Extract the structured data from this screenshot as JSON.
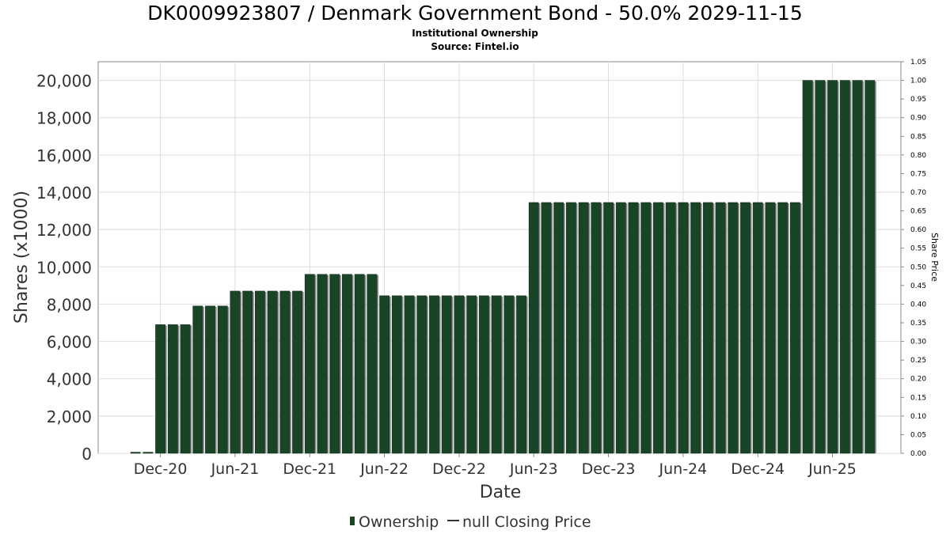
{
  "chart_data": {
    "type": "bar",
    "title": "DK0009923807 / Denmark Government Bond - 50.0% 2029-11-15",
    "subtitle": "Institutional Ownership",
    "source": "Source: Fintel.io",
    "xlabel": "Date",
    "ylabel": "Shares (x1000)",
    "y2label": "Share Price",
    "ylim": [
      0,
      21000
    ],
    "y2lim": [
      0,
      1.05
    ],
    "yticks": [
      0,
      2000,
      4000,
      6000,
      8000,
      10000,
      12000,
      14000,
      16000,
      18000,
      20000
    ],
    "ytick_labels": [
      "0",
      "2,000",
      "4,000",
      "6,000",
      "8,000",
      "10,000",
      "12,000",
      "14,000",
      "16,000",
      "18,000",
      "20,000"
    ],
    "y2ticks": [
      0,
      0.05,
      0.1,
      0.15,
      0.2,
      0.25,
      0.3,
      0.35,
      0.4,
      0.45,
      0.5,
      0.55,
      0.6,
      0.65,
      0.7,
      0.75,
      0.8,
      0.85,
      0.9,
      0.95,
      1.0,
      1.05
    ],
    "y2tick_labels": [
      "0.00",
      "0.05",
      "0.10",
      "0.15",
      "0.20",
      "0.25",
      "0.30",
      "0.35",
      "0.40",
      "0.45",
      "0.50",
      "0.55",
      "0.60",
      "0.65",
      "0.70",
      "0.75",
      "0.80",
      "0.85",
      "0.90",
      "0.95",
      "1.00",
      "1.05"
    ],
    "xtick_labels": [
      "Dec-20",
      "Jun-21",
      "Dec-21",
      "Jun-22",
      "Dec-22",
      "Jun-23",
      "Dec-23",
      "Jun-24",
      "Dec-24",
      "Jun-25"
    ],
    "xtick_slots": [
      5,
      11,
      17,
      23,
      29,
      35,
      41,
      47,
      53,
      59
    ],
    "x_slot_range": [
      0,
      64.5
    ],
    "grid": true,
    "legend_placement": "bottom-center",
    "series": [
      {
        "name": "Ownership",
        "color": "#1a4426",
        "first_slot": 3,
        "values": [
          60,
          60,
          6900,
          6900,
          6900,
          7900,
          7900,
          7900,
          8700,
          8700,
          8700,
          8700,
          8700,
          8700,
          9600,
          9600,
          9600,
          9600,
          9600,
          9600,
          8450,
          8450,
          8450,
          8450,
          8450,
          8450,
          8450,
          8450,
          8450,
          8450,
          8450,
          8450,
          13450,
          13450,
          13450,
          13450,
          13450,
          13450,
          13450,
          13450,
          13450,
          13450,
          13450,
          13450,
          13450,
          13450,
          13450,
          13450,
          13450,
          13450,
          13450,
          13450,
          13450,
          13450,
          20000,
          20000,
          20000,
          20000,
          20000,
          20000
        ]
      },
      {
        "name": "null Closing Price",
        "color": "#333333",
        "values": []
      }
    ]
  }
}
